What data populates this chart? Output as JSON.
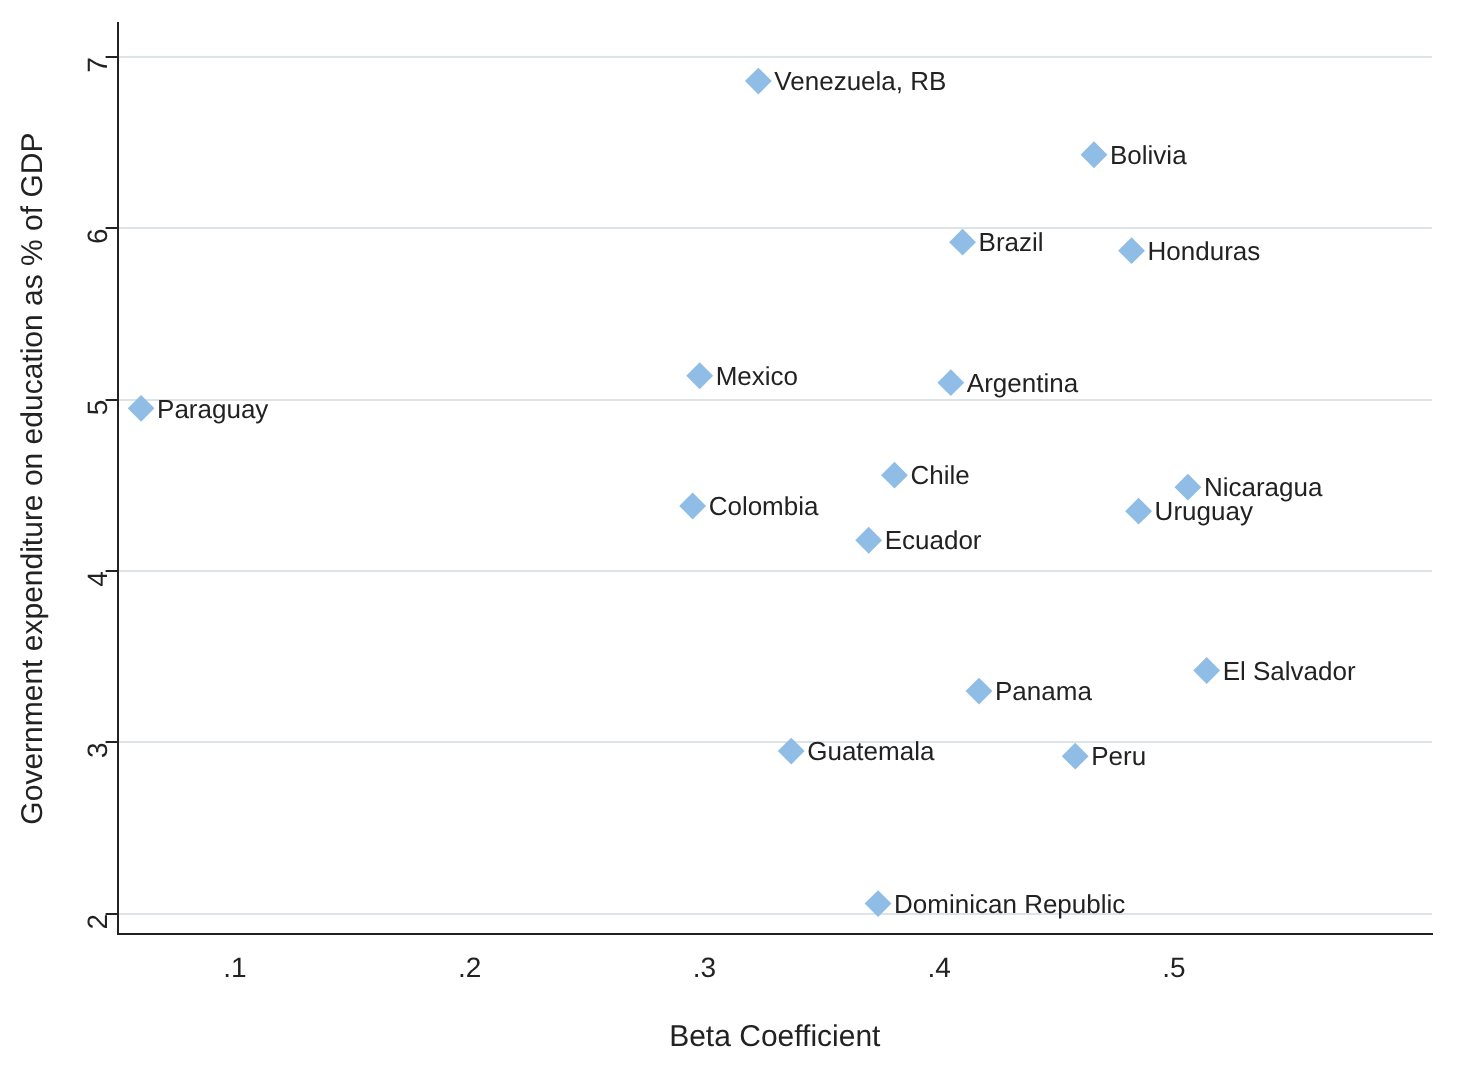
{
  "chart_data": {
    "type": "scatter",
    "xlabel": "Beta Coefficient",
    "ylabel": "Government expenditure on education as % of GDP",
    "series": [
      {
        "color": "#8fbde6",
        "x": [
          0.323,
          0.466,
          0.41,
          0.482,
          0.298,
          0.405,
          0.06,
          0.381,
          0.295,
          0.506,
          0.485,
          0.37,
          0.514,
          0.417,
          0.337,
          0.458,
          0.374
        ],
        "values": [
          6.86,
          6.43,
          5.92,
          5.87,
          5.14,
          5.1,
          4.95,
          4.56,
          4.38,
          4.49,
          4.35,
          4.18,
          3.42,
          3.3,
          2.95,
          2.92,
          2.06
        ]
      }
    ],
    "annotations": [
      {
        "text": "Venezuela, RB",
        "x": 0.323,
        "y": 6.86
      },
      {
        "text": "Bolivia",
        "x": 0.466,
        "y": 6.43
      },
      {
        "text": "Brazil",
        "x": 0.41,
        "y": 5.92
      },
      {
        "text": "Honduras",
        "x": 0.482,
        "y": 5.87
      },
      {
        "text": "Mexico",
        "x": 0.298,
        "y": 5.14
      },
      {
        "text": "Argentina",
        "x": 0.405,
        "y": 5.1
      },
      {
        "text": "Paraguay",
        "x": 0.06,
        "y": 4.95
      },
      {
        "text": "Chile",
        "x": 0.381,
        "y": 4.56
      },
      {
        "text": "Colombia",
        "x": 0.295,
        "y": 4.38
      },
      {
        "text": "Nicaragua",
        "x": 0.506,
        "y": 4.49
      },
      {
        "text": "Uruguay",
        "x": 0.485,
        "y": 4.35
      },
      {
        "text": "Ecuador",
        "x": 0.37,
        "y": 4.18
      },
      {
        "text": "El Salvador",
        "x": 0.514,
        "y": 3.42
      },
      {
        "text": "Panama",
        "x": 0.417,
        "y": 3.3
      },
      {
        "text": "Guatemala",
        "x": 0.337,
        "y": 2.95
      },
      {
        "text": "Peru",
        "x": 0.458,
        "y": 2.92
      },
      {
        "text": "Dominican Republic",
        "x": 0.374,
        "y": 2.06
      }
    ],
    "xlim": [
      0.05,
      0.61
    ],
    "xticks": [
      {
        "value": 0.1,
        "label": ".1"
      },
      {
        "value": 0.2,
        "label": ".2"
      },
      {
        "value": 0.3,
        "label": ".3"
      },
      {
        "value": 0.4,
        "label": ".4"
      },
      {
        "value": 0.5,
        "label": ".5"
      }
    ],
    "ylim": [
      1.88,
      7.2
    ],
    "yticks": [
      2,
      3,
      4,
      5,
      6,
      7
    ],
    "grid": "y",
    "legend": false,
    "marker": "diamond"
  }
}
